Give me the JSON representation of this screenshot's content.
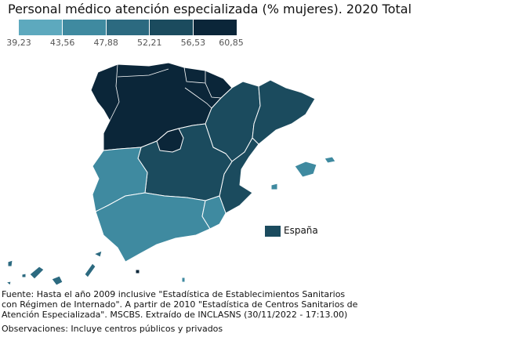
{
  "title": "Personal médico atención especializada (% mujeres). 2020 Total",
  "legend": {
    "colors": [
      "#5da9be",
      "#3f8aa0",
      "#2c6a80",
      "#1b4b5e",
      "#0b2639"
    ],
    "ticks": [
      "39,23",
      "43,56",
      "47,88",
      "52,21",
      "56,53",
      "60,85"
    ]
  },
  "map": {
    "region_colors": {
      "north": "#0b2639",
      "east": "#1b4b5e",
      "center": "#1b4b5e",
      "west": "#3f8aa0",
      "south": "#3f8aa0",
      "islands": "#2c6a80"
    }
  },
  "key": {
    "label": "España",
    "color": "#1b4b5e"
  },
  "source": "Fuente: Hasta el año 2009 inclusive \"Estadística de Establecimientos Sanitarios con Régimen de Internado\". A partir de 2010 \"Estadística de Centros Sanitarios de Atención Especializada\". MSCBS. Extraído de INCLASNS (30/11/2022 - 17:13.00)",
  "observations": "Observaciones: Incluye centros públicos y privados"
}
